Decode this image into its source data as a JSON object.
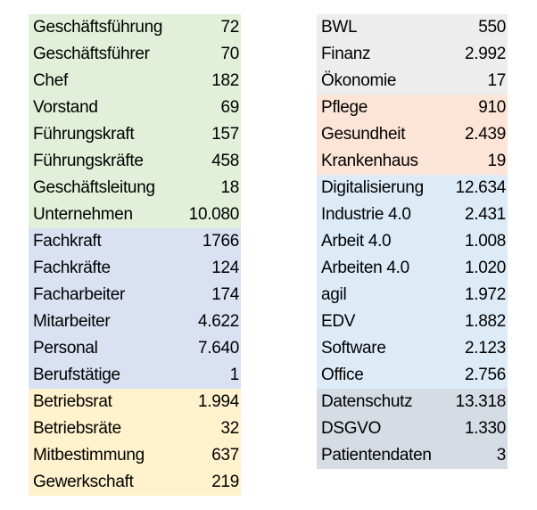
{
  "colors": {
    "green": "#e2efd9",
    "blue": "#d9e1f2",
    "yellow": "#fff2cc",
    "gray": "#ededed",
    "salmon": "#fce4d6",
    "lightblue": "#ddebf7",
    "slate": "#d6dce4"
  },
  "left_table": [
    {
      "label": "Geschäftsführung",
      "value": "72",
      "group": "green"
    },
    {
      "label": "Geschäftsführer",
      "value": "70",
      "group": "green"
    },
    {
      "label": "Chef",
      "value": "182",
      "group": "green"
    },
    {
      "label": "Vorstand",
      "value": "69",
      "group": "green"
    },
    {
      "label": "Führungskraft",
      "value": "157",
      "group": "green"
    },
    {
      "label": "Führungskräfte",
      "value": "458",
      "group": "green"
    },
    {
      "label": "Geschäftsleitung",
      "value": "18",
      "group": "green"
    },
    {
      "label": "Unternehmen",
      "value": "10.080",
      "group": "green"
    },
    {
      "label": "Fachkraft",
      "value": "1766",
      "group": "blue"
    },
    {
      "label": "Fachkräfte",
      "value": "124",
      "group": "blue"
    },
    {
      "label": "Facharbeiter",
      "value": "174",
      "group": "blue"
    },
    {
      "label": "Mitarbeiter",
      "value": "4.622",
      "group": "blue"
    },
    {
      "label": "Personal",
      "value": "7.640",
      "group": "blue"
    },
    {
      "label": "Berufstätige",
      "value": "1",
      "group": "blue"
    },
    {
      "label": "Betriebsrat",
      "value": "1.994",
      "group": "yellow"
    },
    {
      "label": "Betriebsräte",
      "value": "32",
      "group": "yellow"
    },
    {
      "label": "Mitbestimmung",
      "value": "637",
      "group": "yellow"
    },
    {
      "label": "Gewerkschaft",
      "value": "219",
      "group": "yellow"
    }
  ],
  "right_table": [
    {
      "label": "BWL",
      "value": "550",
      "group": "gray"
    },
    {
      "label": "Finanz",
      "value": "2.992",
      "group": "gray"
    },
    {
      "label": "Ökonomie",
      "value": "17",
      "group": "gray"
    },
    {
      "label": "Pflege",
      "value": "910",
      "group": "salmon"
    },
    {
      "label": "Gesundheit",
      "value": "2.439",
      "group": "salmon"
    },
    {
      "label": "Krankenhaus",
      "value": "19",
      "group": "salmon"
    },
    {
      "label": "Digitalisierung",
      "value": "12.634",
      "group": "lightblue"
    },
    {
      "label": "Industrie 4.0",
      "value": "2.431",
      "group": "lightblue"
    },
    {
      "label": "Arbeit 4.0",
      "value": "1.008",
      "group": "lightblue"
    },
    {
      "label": "Arbeiten 4.0",
      "value": "1.020",
      "group": "lightblue"
    },
    {
      "label": "agil",
      "value": "1.972",
      "group": "lightblue"
    },
    {
      "label": "EDV",
      "value": "1.882",
      "group": "lightblue"
    },
    {
      "label": "Software",
      "value": "2.123",
      "group": "lightblue"
    },
    {
      "label": "Office",
      "value": "2.756",
      "group": "lightblue"
    },
    {
      "label": "Datenschutz",
      "value": "13.318",
      "group": "slate"
    },
    {
      "label": "DSGVO",
      "value": "1.330",
      "group": "slate"
    },
    {
      "label": "Patientendaten",
      "value": "3",
      "group": "slate"
    }
  ]
}
